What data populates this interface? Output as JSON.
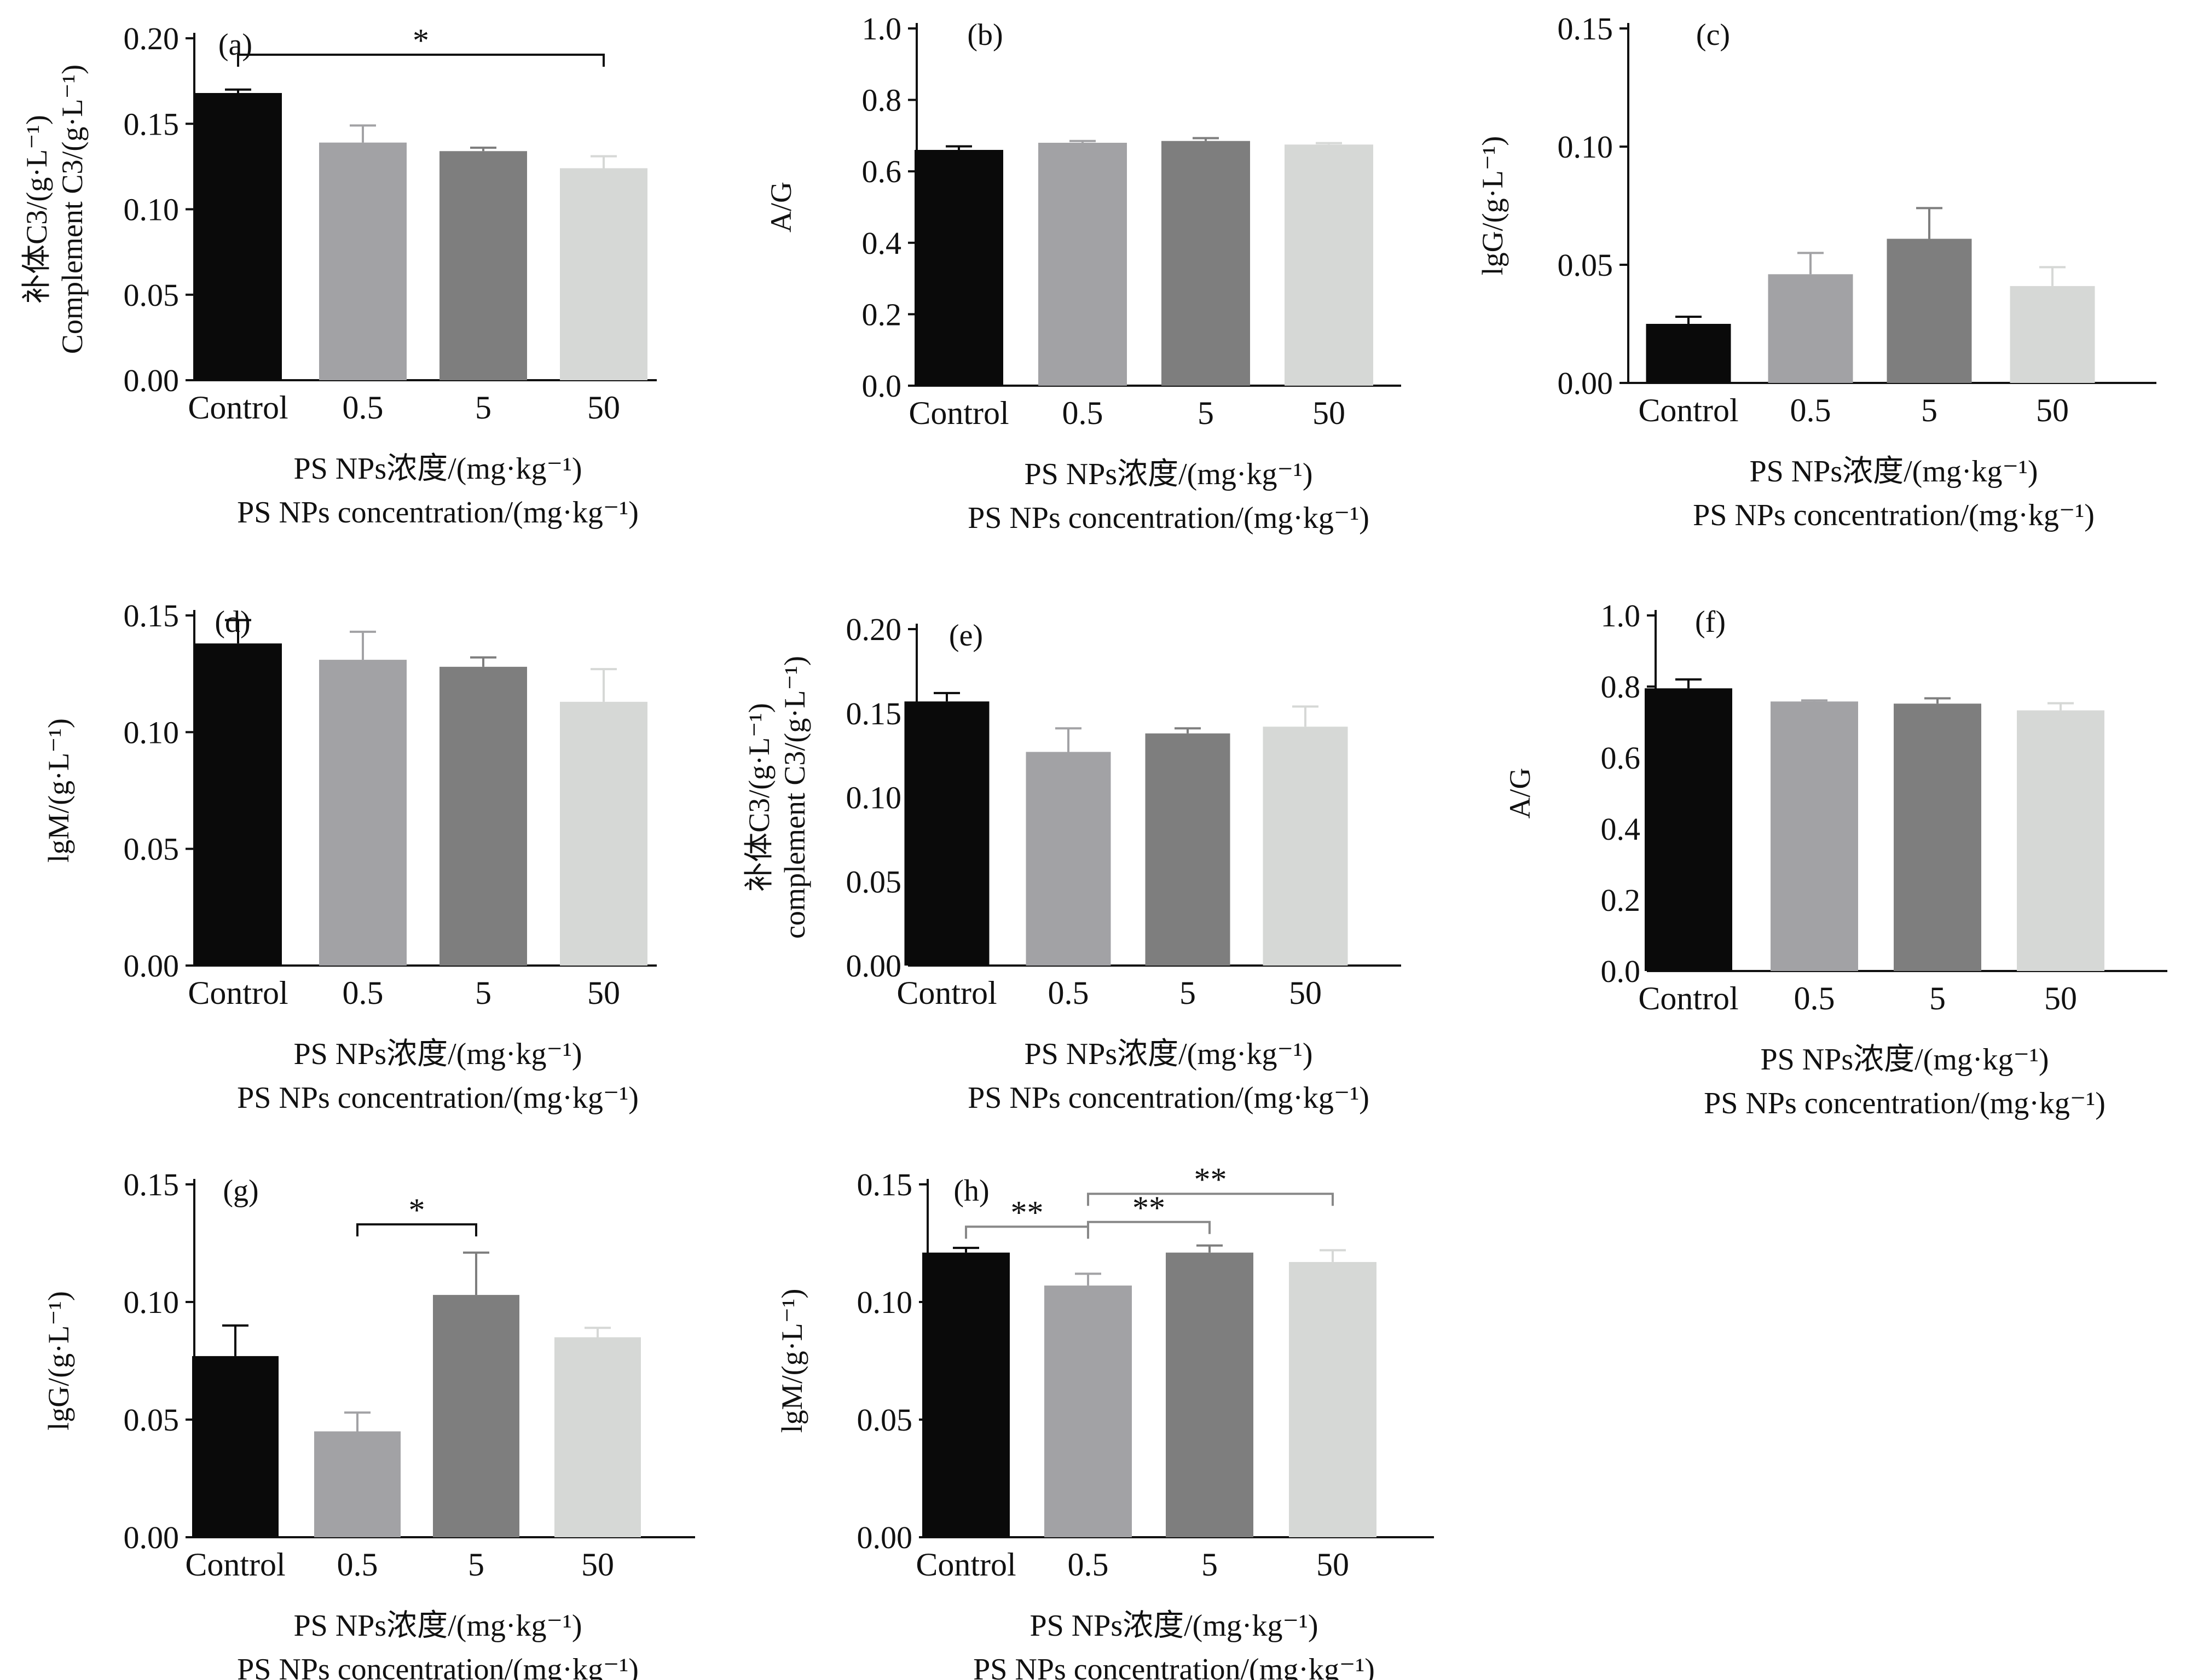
{
  "chart_data": [
    {
      "panel": "(a)",
      "type": "bar",
      "categories": [
        "Control",
        "0.5",
        "5",
        "50"
      ],
      "values": [
        0.168,
        0.139,
        0.134,
        0.124
      ],
      "errors": [
        0.002,
        0.01,
        0.002,
        0.007
      ],
      "ylim": [
        0,
        0.2
      ],
      "yticks": [
        "0.00",
        "0.05",
        "0.10",
        "0.15",
        "0.20"
      ],
      "ylabel": [
        "补体C3/(g·L⁻¹)",
        "Complement C3/(g·L⁻¹)"
      ],
      "xlabel": [
        "PS NPs浓度/(mg·kg⁻¹)",
        "PS NPs concentration/(mg·kg⁻¹)"
      ],
      "significance": [
        {
          "from": 0,
          "to": 3,
          "label": "*"
        }
      ]
    },
    {
      "panel": "(b)",
      "type": "bar",
      "categories": [
        "Control",
        "0.5",
        "5",
        "50"
      ],
      "values": [
        0.66,
        0.68,
        0.685,
        0.675
      ],
      "errors": [
        0.01,
        0.005,
        0.008,
        0.004
      ],
      "ylim": [
        0,
        1.0
      ],
      "yticks": [
        "0.0",
        "0.2",
        "0.4",
        "0.6",
        "0.8",
        "1.0"
      ],
      "ylabel": [
        "A/G"
      ],
      "xlabel": [
        "PS NPs浓度/(mg·kg⁻¹)",
        "PS NPs concentration/(mg·kg⁻¹)"
      ],
      "significance": []
    },
    {
      "panel": "(c)",
      "type": "bar",
      "categories": [
        "Control",
        "0.5",
        "5",
        "50"
      ],
      "values": [
        0.025,
        0.046,
        0.061,
        0.041
      ],
      "errors": [
        0.003,
        0.009,
        0.013,
        0.008
      ],
      "ylim": [
        0,
        0.15
      ],
      "yticks": [
        "0.00",
        "0.05",
        "0.10",
        "0.15"
      ],
      "ylabel": [
        "lgG/(g·L⁻¹)"
      ],
      "xlabel": [
        "PS NPs浓度/(mg·kg⁻¹)",
        "PS NPs concentration/(mg·kg⁻¹)"
      ],
      "significance": []
    },
    {
      "panel": "(d)",
      "type": "bar",
      "categories": [
        "Control",
        "0.5",
        "5",
        "50"
      ],
      "values": [
        0.138,
        0.131,
        0.128,
        0.113
      ],
      "errors": [
        0.01,
        0.012,
        0.004,
        0.014
      ],
      "ylim": [
        0,
        0.15
      ],
      "yticks": [
        "0.00",
        "0.05",
        "0.10",
        "0.15"
      ],
      "ylabel": [
        "lgM/(g·L⁻¹)"
      ],
      "xlabel": [
        "PS NPs浓度/(mg·kg⁻¹)",
        "PS NPs concentration/(mg·kg⁻¹)"
      ],
      "significance": []
    },
    {
      "panel": "(e)",
      "type": "bar",
      "categories": [
        "Control",
        "0.5",
        "5",
        "50"
      ],
      "values": [
        0.157,
        0.127,
        0.138,
        0.142
      ],
      "errors": [
        0.005,
        0.014,
        0.003,
        0.012
      ],
      "ylim": [
        0,
        0.2
      ],
      "yticks": [
        "0.00",
        "0.05",
        "0.10",
        "0.15",
        "0.20"
      ],
      "ylabel": [
        "补体C3/(g·L⁻¹)",
        "complement C3/(g·L⁻¹)"
      ],
      "xlabel": [
        "PS NPs浓度/(mg·kg⁻¹)",
        "PS NPs concentration/(mg·kg⁻¹)"
      ],
      "significance": []
    },
    {
      "panel": "(f)",
      "type": "bar",
      "categories": [
        "Control",
        "0.5",
        "5",
        "50"
      ],
      "values": [
        0.795,
        0.758,
        0.752,
        0.733
      ],
      "errors": [
        0.025,
        0.003,
        0.015,
        0.02
      ],
      "ylim": [
        0,
        1.0
      ],
      "yticks": [
        "0.0",
        "0.2",
        "0.4",
        "0.6",
        "0.8",
        "1.0"
      ],
      "ylabel": [
        "A/G"
      ],
      "xlabel": [
        "PS NPs浓度/(mg·kg⁻¹)",
        "PS NPs concentration/(mg·kg⁻¹)"
      ],
      "significance": []
    },
    {
      "panel": "(g)",
      "type": "bar",
      "categories": [
        "Control",
        "0.5",
        "5",
        "50"
      ],
      "values": [
        0.077,
        0.045,
        0.103,
        0.085
      ],
      "errors": [
        0.013,
        0.008,
        0.018,
        0.004
      ],
      "ylim": [
        0,
        0.15
      ],
      "yticks": [
        "0.00",
        "0.05",
        "0.10",
        "0.15"
      ],
      "ylabel": [
        "lgG/(g·L⁻¹)"
      ],
      "xlabel": [
        "PS NPs浓度/(mg·kg⁻¹)",
        "PS NPs concentration/(mg·kg⁻¹)"
      ],
      "significance": [
        {
          "from": 1,
          "to": 2,
          "label": "*"
        }
      ]
    },
    {
      "panel": "(h)",
      "type": "bar",
      "categories": [
        "Control",
        "0.5",
        "5",
        "50"
      ],
      "values": [
        0.121,
        0.107,
        0.121,
        0.117
      ],
      "errors": [
        0.002,
        0.005,
        0.003,
        0.005
      ],
      "ylim": [
        0,
        0.15
      ],
      "yticks": [
        "0.00",
        "0.05",
        "0.10",
        "0.15"
      ],
      "ylabel": [
        "lgM/(g·L⁻¹)"
      ],
      "xlabel": [
        "PS NPs浓度/(mg·kg⁻¹)",
        "PS NPs concentration/(mg·kg⁻¹)"
      ],
      "significance": [
        {
          "from": 0,
          "to": 1,
          "label": "**"
        },
        {
          "from": 1,
          "to": 2,
          "label": "**"
        },
        {
          "from": 1,
          "to": 3,
          "label": "**"
        }
      ]
    }
  ],
  "bar_colors": [
    "#0a0a0a",
    "#a2a2a5",
    "#7e7e7e",
    "#d6d8d6"
  ]
}
